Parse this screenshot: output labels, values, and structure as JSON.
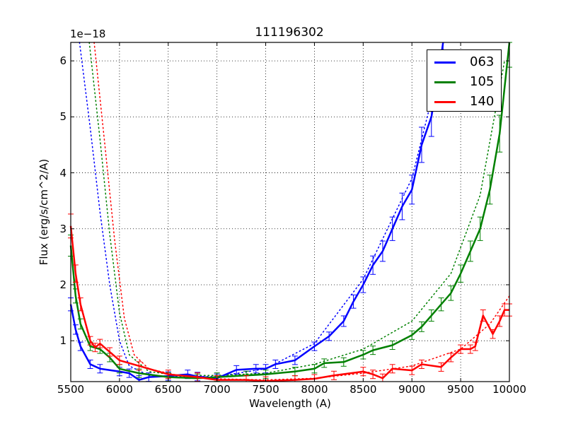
{
  "chart_data": {
    "type": "line",
    "title": "111196302",
    "xlabel": "Wavelength (A)",
    "ylabel": "Flux (erg/s/cm^2/A)",
    "y_offset_label": "1e−18",
    "xlim": [
      5500,
      10000
    ],
    "ylim": [
      0.27,
      6.33
    ],
    "x_ticks": [
      5500,
      6000,
      6500,
      7000,
      7500,
      8000,
      8500,
      9000,
      9500,
      10000
    ],
    "x_tick_labels": [
      "5500",
      "6000",
      "6500",
      "7000",
      "7500",
      "8000",
      "8500",
      "9000",
      "9500",
      "10000"
    ],
    "y_ticks": [
      1,
      2,
      3,
      4,
      5,
      6
    ],
    "y_tick_labels": [
      "1",
      "2",
      "3",
      "4",
      "5",
      "6"
    ],
    "grid": true,
    "legend_position": "upper right",
    "series": [
      {
        "name": "063",
        "color": "#0000ff",
        "style": "solid-with-errorbars",
        "x": [
          5500,
          5550,
          5600,
          5700,
          5800,
          6000,
          6100,
          6200,
          6300,
          6500,
          6700,
          6800,
          7000,
          7200,
          7400,
          7500,
          7600,
          7800,
          8000,
          8150,
          8300,
          8400,
          8500,
          8600,
          8700,
          8800,
          8900,
          9000,
          9100,
          9200,
          9250,
          9320
        ],
        "y": [
          1.65,
          1.2,
          0.9,
          0.58,
          0.5,
          0.45,
          0.42,
          0.3,
          0.35,
          0.37,
          0.4,
          0.36,
          0.33,
          0.48,
          0.5,
          0.5,
          0.58,
          0.65,
          0.9,
          1.08,
          1.35,
          1.7,
          2.0,
          2.35,
          2.6,
          3.0,
          3.4,
          3.7,
          4.5,
          5.0,
          5.5,
          6.33
        ]
      },
      {
        "name": "105",
        "color": "#008000",
        "style": "solid-with-errorbars",
        "x": [
          5500,
          5550,
          5600,
          5700,
          5800,
          5900,
          6000,
          6200,
          6500,
          6800,
          7000,
          7300,
          7500,
          7800,
          8000,
          8100,
          8300,
          8500,
          8600,
          8800,
          9000,
          9100,
          9200,
          9300,
          9400,
          9500,
          9600,
          9700,
          9800,
          9900,
          10000
        ],
        "y": [
          2.7,
          1.8,
          1.3,
          0.9,
          0.85,
          0.7,
          0.5,
          0.42,
          0.35,
          0.33,
          0.35,
          0.38,
          0.4,
          0.45,
          0.5,
          0.6,
          0.62,
          0.75,
          0.83,
          0.92,
          1.1,
          1.25,
          1.45,
          1.65,
          1.85,
          2.2,
          2.6,
          3.0,
          3.7,
          4.7,
          6.33
        ]
      },
      {
        "name": "140",
        "color": "#ff0000",
        "style": "solid-with-errorbars",
        "x": [
          5500,
          5550,
          5600,
          5700,
          5750,
          5800,
          5900,
          6000,
          6200,
          6500,
          6800,
          7000,
          7300,
          7500,
          7800,
          8000,
          8200,
          8500,
          8600,
          8700,
          8800,
          9000,
          9100,
          9300,
          9400,
          9500,
          9600,
          9650,
          9730,
          9830,
          9900,
          9950,
          10000
        ],
        "y": [
          3.05,
          2.2,
          1.65,
          1.0,
          0.88,
          0.95,
          0.8,
          0.65,
          0.55,
          0.4,
          0.35,
          0.3,
          0.3,
          0.28,
          0.3,
          0.32,
          0.38,
          0.45,
          0.4,
          0.33,
          0.5,
          0.47,
          0.58,
          0.53,
          0.7,
          0.85,
          0.85,
          0.9,
          1.45,
          1.12,
          1.35,
          1.55,
          1.55
        ]
      }
    ],
    "model_curves": [
      {
        "name": "063-model",
        "color": "#0000ff",
        "style": "dotted",
        "x": [
          5590,
          5700,
          5800,
          5900,
          6000,
          6100,
          6300,
          6600,
          7000,
          7500,
          8000,
          8500,
          9000,
          9300
        ],
        "y": [
          6.33,
          4.8,
          3.3,
          2.0,
          1.0,
          0.55,
          0.38,
          0.36,
          0.36,
          0.5,
          0.95,
          2.1,
          3.9,
          6.0
        ]
      },
      {
        "name": "105-model",
        "color": "#008000",
        "style": "dotted",
        "x": [
          5690,
          5800,
          5900,
          6000,
          6100,
          6300,
          6600,
          7000,
          7500,
          8000,
          8500,
          9000,
          9400,
          9700,
          9950
        ],
        "y": [
          6.33,
          4.6,
          2.9,
          1.5,
          0.75,
          0.45,
          0.38,
          0.38,
          0.42,
          0.58,
          0.85,
          1.35,
          2.2,
          3.6,
          6.0
        ]
      },
      {
        "name": "140-model",
        "color": "#ff0000",
        "style": "dotted",
        "x": [
          5740,
          5850,
          5950,
          6050,
          6150,
          6300,
          6600,
          7000,
          7500,
          8000,
          8500,
          9000,
          9500,
          9800,
          10000
        ],
        "y": [
          6.33,
          4.5,
          2.8,
          1.4,
          0.75,
          0.5,
          0.38,
          0.32,
          0.3,
          0.33,
          0.42,
          0.55,
          0.85,
          1.3,
          1.8
        ]
      }
    ]
  },
  "legend": {
    "items": [
      {
        "label": "063",
        "color": "#0000ff"
      },
      {
        "label": "105",
        "color": "#008000"
      },
      {
        "label": "140",
        "color": "#ff0000"
      }
    ]
  }
}
